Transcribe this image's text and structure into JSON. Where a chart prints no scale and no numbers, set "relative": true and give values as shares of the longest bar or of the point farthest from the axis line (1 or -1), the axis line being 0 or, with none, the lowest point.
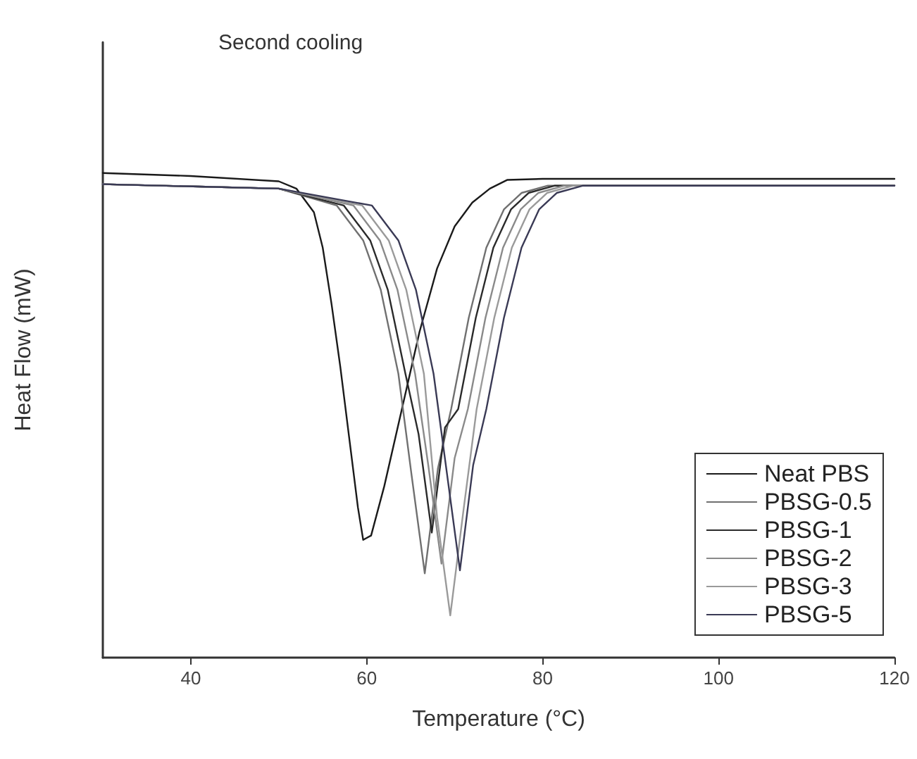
{
  "chart_data": {
    "type": "line",
    "title": "Second cooling",
    "xlabel": "Temperature (°C)",
    "ylabel": "Heat Flow (mW)",
    "relative": true,
    "xlim": [
      30,
      120
    ],
    "xticks": [
      40,
      60,
      80,
      100,
      120
    ],
    "tick_labels": "x",
    "grid": false,
    "legend": "bottom right",
    "marker": "none",
    "line_style": "solid",
    "series": [
      {
        "name": "Neat PBS",
        "color": "#1a1a1a",
        "x": [
          30,
          40,
          50,
          52,
          54,
          55,
          56,
          57,
          58,
          59,
          59.6,
          60.5,
          62,
          64,
          66,
          68,
          70,
          72,
          74,
          76,
          80,
          120
        ],
        "values": [
          1,
          0.994,
          0.983,
          0.968,
          0.919,
          0.846,
          0.73,
          0.6,
          0.455,
          0.31,
          0.243,
          0.252,
          0.354,
          0.513,
          0.672,
          0.803,
          0.89,
          0.939,
          0.968,
          0.986,
          0.988,
          0.988
        ]
      },
      {
        "name": "PBSG-0.5",
        "color": "#707070",
        "x": [
          30,
          50,
          56.6,
          59.6,
          61.6,
          63.6,
          65.1,
          66.6,
          68.1,
          69.6,
          71.6,
          73.6,
          75.6,
          77.6,
          80.6,
          120
        ],
        "values": [
          0.977,
          0.968,
          0.933,
          0.861,
          0.759,
          0.586,
          0.377,
          0.174,
          0.391,
          0.513,
          0.701,
          0.846,
          0.925,
          0.959,
          0.974,
          0.974
        ]
      },
      {
        "name": "PBSG-1",
        "color": "#2a2a2a",
        "x": [
          30,
          50,
          57.4,
          60.4,
          62.4,
          64.4,
          65.9,
          67.4,
          68.9,
          70.4,
          72.4,
          74.4,
          76.4,
          78.4,
          81.4,
          120
        ],
        "values": [
          0.977,
          0.968,
          0.933,
          0.861,
          0.759,
          0.586,
          0.461,
          0.258,
          0.475,
          0.513,
          0.701,
          0.846,
          0.925,
          0.959,
          0.974,
          0.974
        ]
      },
      {
        "name": "PBSG-2",
        "color": "#8a8a8a",
        "x": [
          30,
          50,
          58.5,
          61.5,
          63.5,
          65.5,
          67,
          68.5,
          70,
          71.5,
          73.5,
          75.5,
          77.5,
          79.5,
          82.5,
          120
        ],
        "values": [
          0.977,
          0.968,
          0.933,
          0.861,
          0.759,
          0.586,
          0.397,
          0.194,
          0.412,
          0.513,
          0.701,
          0.846,
          0.925,
          0.959,
          0.974,
          0.974
        ]
      },
      {
        "name": "PBSG-3",
        "color": "#9a9a9a",
        "x": [
          30,
          50,
          59.5,
          62.5,
          64.5,
          66.5,
          68,
          69.5,
          71,
          72.5,
          74.5,
          76.5,
          78.5,
          80.5,
          83.5,
          120
        ],
        "values": [
          0.977,
          0.968,
          0.933,
          0.861,
          0.759,
          0.586,
          0.29,
          0.087,
          0.304,
          0.513,
          0.701,
          0.846,
          0.925,
          0.959,
          0.974,
          0.974
        ]
      },
      {
        "name": "PBSG-5",
        "color": "#3a3a55",
        "x": [
          30,
          50,
          60.6,
          63.6,
          65.6,
          67.6,
          69.1,
          70.6,
          72.1,
          73.6,
          75.6,
          77.6,
          79.6,
          81.6,
          84.6,
          120
        ],
        "values": [
          0.977,
          0.968,
          0.933,
          0.861,
          0.759,
          0.586,
          0.383,
          0.18,
          0.397,
          0.513,
          0.701,
          0.846,
          0.925,
          0.959,
          0.974,
          0.974
        ]
      }
    ]
  }
}
